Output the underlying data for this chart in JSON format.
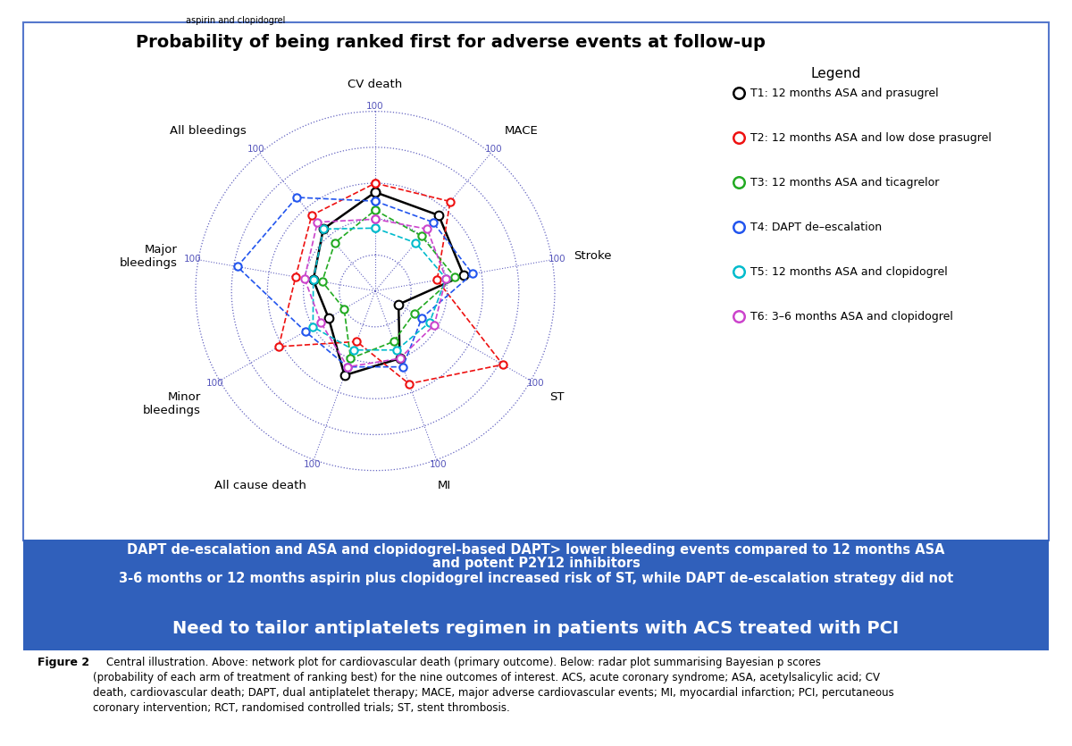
{
  "title": "Probability of being ranked first for adverse events at follow-up",
  "categories": [
    "CV death",
    "MACE",
    "Stroke",
    "ST",
    "MI",
    "All cause death",
    "Minor bleedings",
    "Major bleedings",
    "All bleedings"
  ],
  "num_categories": 9,
  "max_val": 100,
  "grid_levels": [
    20,
    40,
    60,
    80,
    100
  ],
  "series": [
    {
      "label": "T1: 12 months ASA and prasugrel",
      "color": "#000000",
      "line_style": "-",
      "values": [
        55,
        55,
        50,
        15,
        40,
        50,
        30,
        35,
        45
      ]
    },
    {
      "label": "T2: 12 months ASA and low dose prasugrel",
      "color": "#EE1111",
      "line_style": "--",
      "values": [
        60,
        65,
        35,
        82,
        55,
        30,
        62,
        45,
        55
      ]
    },
    {
      "label": "T3: 12 months ASA and ticagrelor",
      "color": "#22AA22",
      "line_style": "--",
      "values": [
        45,
        40,
        45,
        25,
        30,
        40,
        20,
        30,
        35
      ]
    },
    {
      "label": "T4: DAPT de-escalation",
      "color": "#2255EE",
      "line_style": "--",
      "values": [
        50,
        50,
        55,
        30,
        45,
        45,
        45,
        78,
        68
      ]
    },
    {
      "label": "T5: 12 months ASA and clopidogrel",
      "color": "#00BBCC",
      "line_style": "--",
      "values": [
        35,
        35,
        40,
        35,
        35,
        35,
        40,
        35,
        45
      ]
    },
    {
      "label": "T6: 3-6 months ASA and clopidogrel",
      "color": "#CC44CC",
      "line_style": "--",
      "values": [
        40,
        45,
        40,
        38,
        40,
        45,
        35,
        40,
        50
      ]
    }
  ],
  "legend_title": "Legend",
  "legend_entries": [
    {
      "color": "#000000",
      "label": "T1: 12 months ASA and prasugrel"
    },
    {
      "color": "#EE1111",
      "label": "T2: 12 months ASA and low dose prasugrel"
    },
    {
      "color": "#22AA22",
      "label": "T3: 12 months ASA and ticagrelor"
    },
    {
      "color": "#2255EE",
      "label": "T4: DAPT de–escalation"
    },
    {
      "color": "#00BBCC",
      "label": "T5: 12 months ASA and clopidogrel"
    },
    {
      "color": "#CC44CC",
      "label": "T6: 3–6 months ASA and clopidogrel"
    }
  ],
  "box_line1": "DAPT de-escalation and ASA and clopidogrel-based DAPT> lower bleeding events compared to 12 months ASA",
  "box_line2": "and potent P2Y12 inhibitors",
  "box_line3": "3-6 months or 12 months aspirin plus clopidogrel increased risk of ST, while DAPT de-escalation strategy did not",
  "box_line4": "Need to tailor antiplatelets regimen in patients with ACS treated with PCI",
  "caption_bold": "Figure 2",
  "caption_text": "    Central illustration. Above: network plot for cardiovascular death (primary outcome). Below: radar plot summarising Bayesian p scores\n(probability of each arm of treatment of ranking best) for the nine outcomes of interest. ACS, acute coronary syndrome; ASA, acetylsalicylic acid; CV\ndeath, cardiovascular death; DAPT, dual antiplatelet therapy; MACE, major adverse cardiovascular events; MI, myocardial infarction; PCI, percutaneous\ncoronary intervention; RCT, randomised controlled trials; ST, stent thrombosis.",
  "top_label": "aspirin and clopidogrel",
  "grid_color": "#5555BB",
  "label_color": "#5555BB",
  "border_color": "#5577CC",
  "box_bg_color": "#3060BB",
  "box_text_color": "#FFFFFF"
}
